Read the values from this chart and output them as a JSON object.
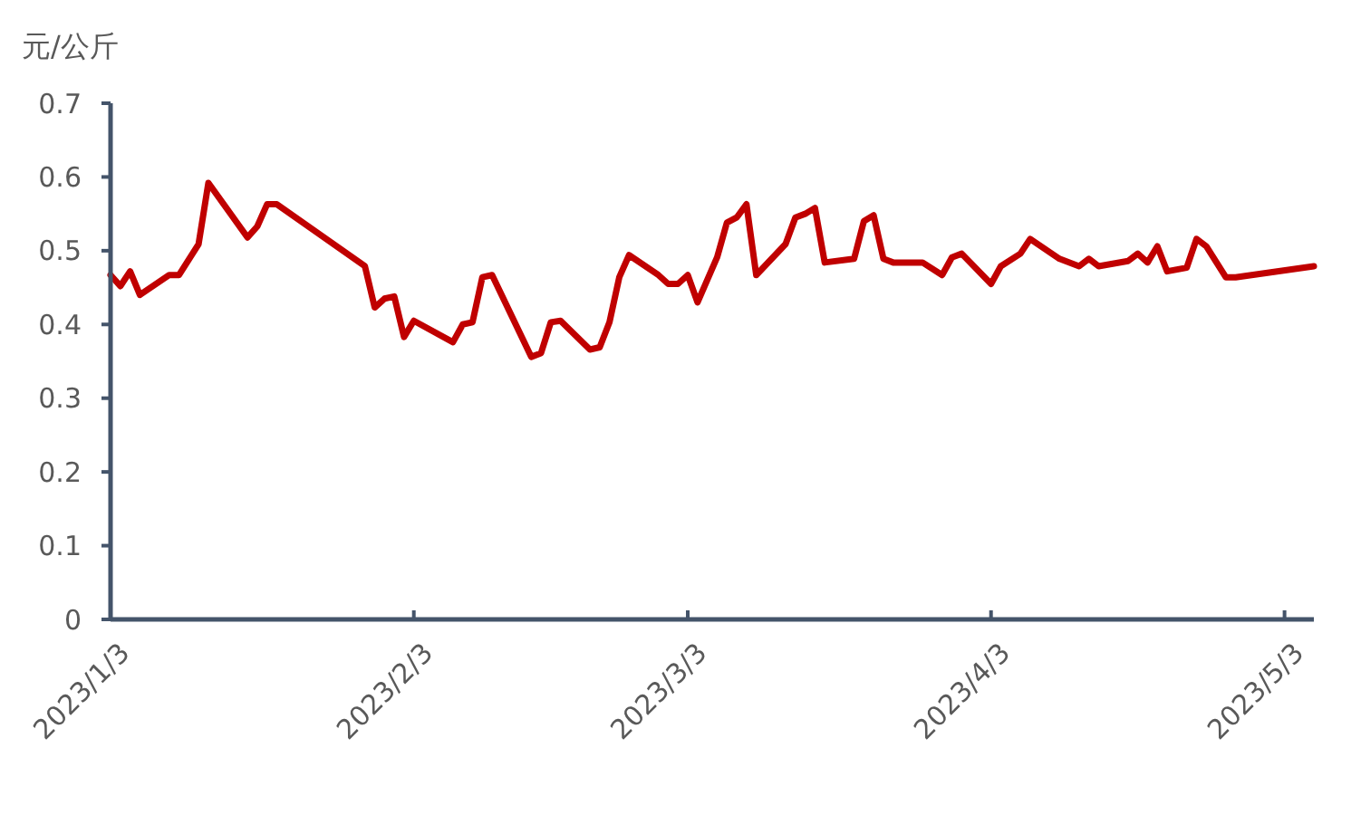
{
  "chart_data": {
    "type": "line",
    "ylabel": "元/公斤",
    "x": [
      "2023-01-03",
      "2023-01-04",
      "2023-01-05",
      "2023-01-06",
      "2023-01-09",
      "2023-01-10",
      "2023-01-12",
      "2023-01-13",
      "2023-01-17",
      "2023-01-18",
      "2023-01-19",
      "2023-01-20",
      "2023-01-29",
      "2023-01-30",
      "2023-01-31",
      "2023-02-01",
      "2023-02-02",
      "2023-02-03",
      "2023-02-07",
      "2023-02-08",
      "2023-02-09",
      "2023-02-10",
      "2023-02-11",
      "2023-02-15",
      "2023-02-16",
      "2023-02-17",
      "2023-02-18",
      "2023-02-21",
      "2023-02-22",
      "2023-02-23",
      "2023-02-24",
      "2023-02-25",
      "2023-02-28",
      "2023-03-01",
      "2023-03-02",
      "2023-03-03",
      "2023-03-04",
      "2023-03-06",
      "2023-03-07",
      "2023-03-08",
      "2023-03-09",
      "2023-03-10",
      "2023-03-13",
      "2023-03-14",
      "2023-03-15",
      "2023-03-16",
      "2023-03-17",
      "2023-03-20",
      "2023-03-21",
      "2023-03-22",
      "2023-03-23",
      "2023-03-24",
      "2023-03-27",
      "2023-03-29",
      "2023-03-30",
      "2023-03-31",
      "2023-04-03",
      "2023-04-04",
      "2023-04-06",
      "2023-04-07",
      "2023-04-10",
      "2023-04-12",
      "2023-04-13",
      "2023-04-14",
      "2023-04-17",
      "2023-04-18",
      "2023-04-19",
      "2023-04-20",
      "2023-04-21",
      "2023-04-23",
      "2023-04-24",
      "2023-04-25",
      "2023-04-27",
      "2023-04-28",
      "2023-05-06"
    ],
    "series": [
      {
        "color": "#c00000",
        "values": [
          0.467,
          0.452,
          0.472,
          0.44,
          0.467,
          0.467,
          0.509,
          0.592,
          0.518,
          0.533,
          0.563,
          0.563,
          0.479,
          0.423,
          0.435,
          0.438,
          0.383,
          0.405,
          0.376,
          0.4,
          0.403,
          0.464,
          0.467,
          0.356,
          0.361,
          0.403,
          0.405,
          0.366,
          0.369,
          0.403,
          0.464,
          0.494,
          0.467,
          0.455,
          0.455,
          0.467,
          0.43,
          0.491,
          0.538,
          0.545,
          0.563,
          0.467,
          0.509,
          0.545,
          0.55,
          0.558,
          0.484,
          0.489,
          0.54,
          0.548,
          0.489,
          0.484,
          0.484,
          0.467,
          0.491,
          0.496,
          0.455,
          0.479,
          0.496,
          0.516,
          0.489,
          0.479,
          0.489,
          0.479,
          0.486,
          0.496,
          0.484,
          0.506,
          0.472,
          0.477,
          0.516,
          0.506,
          0.464,
          0.464,
          0.479
        ]
      }
    ],
    "xlim": [
      "2023-01-03",
      "2023-05-06"
    ],
    "xticks": [
      {
        "value": "2023-01-03",
        "label": "2023/1/3"
      },
      {
        "value": "2023-02-03",
        "label": "2023/2/3"
      },
      {
        "value": "2023-03-03",
        "label": "2023/3/3"
      },
      {
        "value": "2023-04-03",
        "label": "2023/4/3"
      },
      {
        "value": "2023-05-03",
        "label": "2023/5/3"
      }
    ],
    "ylim": [
      0,
      0.7
    ],
    "yticks": [
      0,
      0.1,
      0.2,
      0.3,
      0.4,
      0.5,
      0.6,
      0.7
    ],
    "grid": false,
    "marker": "none",
    "line_style": "solid"
  }
}
